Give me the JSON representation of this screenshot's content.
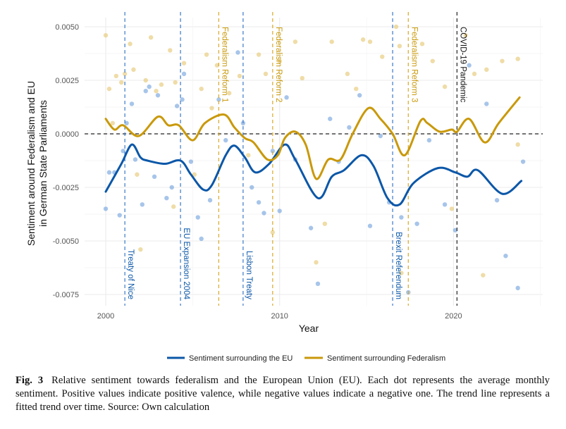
{
  "chart_data": {
    "type": "scatter",
    "xlabel": "Year",
    "ylabel_line1": "Sentiment around Federalism and EU",
    "ylabel_line2": "in German State Parliaments",
    "xlim": [
      1998.8,
      2025.0
    ],
    "ylim": [
      -0.008,
      0.0055
    ],
    "x_ticks": [
      2000,
      2010,
      2020
    ],
    "x_tick_labels": [
      "2000",
      "2010",
      "2020"
    ],
    "y_ticks": [
      0.005,
      0.0025,
      0,
      -0.0025,
      -0.005,
      -0.0075
    ],
    "y_tick_labels": [
      "0.0050",
      "0.0025",
      "0.0000",
      "-0.0025",
      "-0.0050",
      "-0.0075"
    ],
    "grid": true,
    "reference_line": 0,
    "legend_position": "bottom",
    "colors": {
      "eu": "#0b57a8",
      "eu_points": "#6d9fdc",
      "federalism": "#c9990a",
      "federalism_points": "#e5c46c",
      "covid": "#222222"
    },
    "events": [
      {
        "label": "Treaty of Nice",
        "year": 2001.1,
        "group": "eu"
      },
      {
        "label": "EU Expansion 2004",
        "year": 2004.3,
        "group": "eu"
      },
      {
        "label": "Federalism Reform 1",
        "year": 2006.5,
        "group": "federalism"
      },
      {
        "label": "Lisbon Treaty",
        "year": 2007.9,
        "group": "eu"
      },
      {
        "label": "Federalism Reform 2",
        "year": 2009.6,
        "group": "federalism"
      },
      {
        "label": "Brexit Referendum",
        "year": 2016.5,
        "group": "eu"
      },
      {
        "label": "Federalism Reform 3",
        "year": 2017.4,
        "group": "federalism"
      },
      {
        "label": "COVID-19 Pandemic",
        "year": 2020.2,
        "group": "covid"
      }
    ],
    "series": [
      {
        "name": "Sentiment surrounding the EU",
        "key": "eu",
        "trend": [
          [
            2000.0,
            -0.0027
          ],
          [
            2000.9,
            -0.0014
          ],
          [
            2001.5,
            -0.0005
          ],
          [
            2002.0,
            -0.0011
          ],
          [
            2002.4,
            -0.00125
          ],
          [
            2003.4,
            -0.0014
          ],
          [
            2004.3,
            -0.00125
          ],
          [
            2004.9,
            -0.0019
          ],
          [
            2005.6,
            -0.0026
          ],
          [
            2006.1,
            -0.0024
          ],
          [
            2006.9,
            -0.001
          ],
          [
            2007.4,
            -0.00055
          ],
          [
            2008.0,
            -0.0011
          ],
          [
            2008.6,
            -0.0018
          ],
          [
            2009.4,
            -0.0014
          ],
          [
            2010.3,
            -0.0005
          ],
          [
            2010.9,
            -0.0012
          ],
          [
            2012.2,
            -0.003
          ],
          [
            2013.0,
            -0.002
          ],
          [
            2013.7,
            -0.0017
          ],
          [
            2014.7,
            -0.001
          ],
          [
            2015.4,
            -0.0015
          ],
          [
            2016.2,
            -0.003
          ],
          [
            2016.9,
            -0.0033
          ],
          [
            2017.7,
            -0.0023
          ],
          [
            2019.1,
            -0.0016
          ],
          [
            2020.1,
            -0.0018
          ],
          [
            2020.8,
            -0.002
          ],
          [
            2021.4,
            -0.0017
          ],
          [
            2022.8,
            -0.0028
          ],
          [
            2023.9,
            -0.0022
          ]
        ],
        "points": [
          [
            2000.0,
            -0.0035
          ],
          [
            2000.2,
            -0.0018
          ],
          [
            2000.5,
            -0.0018
          ],
          [
            2000.8,
            -0.0038
          ],
          [
            2001.0,
            -0.0008
          ],
          [
            2001.2,
            0.0005
          ],
          [
            2001.5,
            0.0014
          ],
          [
            2001.7,
            -0.0012
          ],
          [
            2002.1,
            -0.0033
          ],
          [
            2002.3,
            0.002
          ],
          [
            2002.5,
            0.0022
          ],
          [
            2002.8,
            -0.002
          ],
          [
            2003.0,
            0.0018
          ],
          [
            2003.5,
            -0.003
          ],
          [
            2003.8,
            -0.0025
          ],
          [
            2004.1,
            0.0013
          ],
          [
            2004.4,
            0.0016
          ],
          [
            2004.5,
            0.0028
          ],
          [
            2004.9,
            -0.0013
          ],
          [
            2005.3,
            -0.0039
          ],
          [
            2005.5,
            -0.0049
          ],
          [
            2006.0,
            -0.0031
          ],
          [
            2006.5,
            0.0016
          ],
          [
            2006.9,
            -0.0003
          ],
          [
            2007.6,
            0.0038
          ],
          [
            2007.9,
            0.0005
          ],
          [
            2008.4,
            -0.0025
          ],
          [
            2008.8,
            -0.0032
          ],
          [
            2009.1,
            -0.0037
          ],
          [
            2009.6,
            -0.0008
          ],
          [
            2010.0,
            -0.0036
          ],
          [
            2010.4,
            0.0017
          ],
          [
            2010.9,
            -0.0012
          ],
          [
            2011.8,
            -0.0044
          ],
          [
            2012.2,
            -0.007
          ],
          [
            2012.9,
            0.0007
          ],
          [
            2013.4,
            -0.0013
          ],
          [
            2014.0,
            0.0003
          ],
          [
            2014.6,
            0.0018
          ],
          [
            2015.2,
            -0.0043
          ],
          [
            2015.8,
            -0.0001
          ],
          [
            2016.3,
            -0.0032
          ],
          [
            2017.0,
            -0.0039
          ],
          [
            2017.4,
            -0.0074
          ],
          [
            2017.9,
            -0.0042
          ],
          [
            2018.6,
            -0.0003
          ],
          [
            2019.5,
            -0.0033
          ],
          [
            2020.1,
            -0.0045
          ],
          [
            2020.9,
            0.0032
          ],
          [
            2021.9,
            0.0014
          ],
          [
            2022.5,
            -0.0031
          ],
          [
            2023.0,
            -0.0057
          ],
          [
            2023.7,
            -0.0072
          ],
          [
            2024.0,
            -0.0013
          ]
        ]
      },
      {
        "name": "Sentiment surrounding Federalism",
        "key": "federalism",
        "trend": [
          [
            2000.0,
            0.0007
          ],
          [
            2000.5,
            0.0002
          ],
          [
            2001.0,
            0.0004
          ],
          [
            2001.9,
            -0.0001
          ],
          [
            2003.0,
            0.0008
          ],
          [
            2003.6,
            0.0004
          ],
          [
            2004.2,
            0.0004
          ],
          [
            2005.0,
            -0.0003
          ],
          [
            2005.7,
            0.0005
          ],
          [
            2006.8,
            0.0009
          ],
          [
            2007.4,
            0.0003
          ],
          [
            2008.0,
            -0.0002
          ],
          [
            2008.5,
            -0.0004
          ],
          [
            2009.3,
            -0.0012
          ],
          [
            2009.9,
            -0.001
          ],
          [
            2010.3,
            -0.0002
          ],
          [
            2010.9,
            0.0001
          ],
          [
            2011.5,
            -0.0005
          ],
          [
            2012.1,
            -0.0021
          ],
          [
            2012.8,
            -0.0012
          ],
          [
            2013.5,
            -0.0012
          ],
          [
            2014.2,
            0.0
          ],
          [
            2015.1,
            0.0012
          ],
          [
            2015.8,
            0.0007
          ],
          [
            2016.5,
            0.0
          ],
          [
            2017.2,
            -0.001
          ],
          [
            2018.1,
            0.0006
          ],
          [
            2018.5,
            0.0005
          ],
          [
            2019.2,
            0.0001
          ],
          [
            2019.9,
            0.0002
          ],
          [
            2020.2,
            0.0001
          ],
          [
            2020.9,
            0.0007
          ],
          [
            2021.8,
            -0.0004
          ],
          [
            2022.6,
            0.0005
          ],
          [
            2023.8,
            0.0017
          ]
        ],
        "points": [
          [
            2000.0,
            0.0046
          ],
          [
            2000.2,
            0.0021
          ],
          [
            2000.4,
            0.0005
          ],
          [
            2000.6,
            0.0027
          ],
          [
            2000.9,
            0.0024
          ],
          [
            2001.1,
            0.0028
          ],
          [
            2001.4,
            0.0042
          ],
          [
            2001.6,
            0.003
          ],
          [
            2001.8,
            -0.0019
          ],
          [
            2002.0,
            -0.0054
          ],
          [
            2002.3,
            0.0025
          ],
          [
            2002.6,
            0.0045
          ],
          [
            2002.9,
            0.002
          ],
          [
            2003.2,
            0.0023
          ],
          [
            2003.7,
            0.0039
          ],
          [
            2003.9,
            -0.0034
          ],
          [
            2004.0,
            0.0024
          ],
          [
            2004.5,
            0.0033
          ],
          [
            2005.1,
            -0.0019
          ],
          [
            2005.5,
            0.0021
          ],
          [
            2005.8,
            0.0037
          ],
          [
            2006.1,
            0.0012
          ],
          [
            2006.4,
            0.0032
          ],
          [
            2007.1,
            0.0019
          ],
          [
            2007.7,
            0.0027
          ],
          [
            2008.2,
            -0.001
          ],
          [
            2008.8,
            0.0037
          ],
          [
            2009.2,
            0.0028
          ],
          [
            2009.6,
            -0.0046
          ],
          [
            2010.0,
            0.0034
          ],
          [
            2010.9,
            0.0043
          ],
          [
            2011.3,
            0.0026
          ],
          [
            2012.1,
            -0.006
          ],
          [
            2012.6,
            -0.0042
          ],
          [
            2013.0,
            0.0043
          ],
          [
            2013.9,
            0.0028
          ],
          [
            2014.4,
            0.0021
          ],
          [
            2014.8,
            0.0044
          ],
          [
            2015.2,
            0.0043
          ],
          [
            2015.9,
            0.0036
          ],
          [
            2016.7,
            0.005
          ],
          [
            2016.9,
            0.0041
          ],
          [
            2017.0,
            -0.0065
          ],
          [
            2018.2,
            0.0042
          ],
          [
            2018.8,
            0.0034
          ],
          [
            2019.5,
            0.0022
          ],
          [
            2019.9,
            -0.0035
          ],
          [
            2020.7,
            0.0046
          ],
          [
            2021.2,
            0.0028
          ],
          [
            2021.7,
            -0.0066
          ],
          [
            2021.9,
            0.003
          ],
          [
            2022.8,
            0.0034
          ],
          [
            2023.7,
            0.0035
          ],
          [
            2023.7,
            -0.0005
          ]
        ]
      }
    ]
  },
  "caption": {
    "label": "Fig. 3",
    "text": "Relative sentiment towards federalism and the European Union (EU). Each dot represents the average monthly sentiment. Positive values indicate positive valence, while negative values indicate a negative one. The trend line represents a fitted trend over time. Source: Own calculation"
  }
}
